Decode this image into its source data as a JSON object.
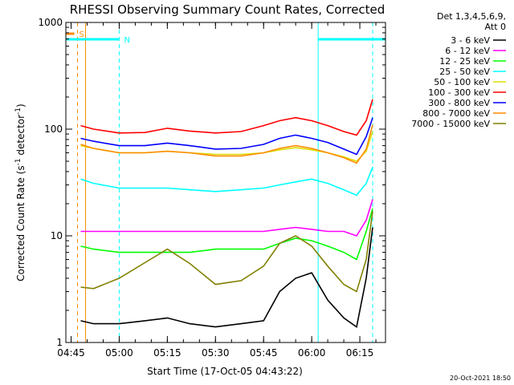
{
  "chart_data": {
    "type": "line",
    "title": "RHESSI Observing Summary Count Rates, Corrected",
    "xlabel": "Start Time (17-Oct-05 04:43:22)",
    "ylabel": "Corrected Count Rate (s⁻¹ detector⁻¹)",
    "yscale": "log",
    "ylim": [
      1,
      1000
    ],
    "xlim": [
      "04:43:22",
      "06:23:00"
    ],
    "y_ticks": [
      "1",
      "10",
      "100",
      "1000"
    ],
    "x_ticks": [
      "04:45",
      "05:00",
      "05:15",
      "05:30",
      "05:45",
      "06:00",
      "06:15"
    ],
    "legend_header": [
      "Det 1,3,4,5,6,9,",
      "Att 0"
    ],
    "legend_position": "right",
    "grid": false,
    "x": [
      "04:48",
      "04:52",
      "05:00",
      "05:08",
      "05:15",
      "05:22",
      "05:30",
      "05:38",
      "05:45",
      "05:50",
      "05:55",
      "06:00",
      "06:05",
      "06:10",
      "06:14",
      "06:17",
      "06:19"
    ],
    "series": [
      {
        "name": "3 - 6 keV",
        "color": "#000000",
        "values": [
          1.6,
          1.5,
          1.5,
          1.6,
          1.7,
          1.5,
          1.4,
          1.5,
          1.6,
          3,
          4,
          4.5,
          2.5,
          1.7,
          1.4,
          4,
          12
        ]
      },
      {
        "name": "6 - 12 keV",
        "color": "#ff00ff",
        "values": [
          11,
          11,
          11,
          11,
          11,
          11,
          11,
          11,
          11,
          11.5,
          12,
          11.5,
          11,
          11,
          10,
          14,
          22
        ]
      },
      {
        "name": "12 - 25 keV",
        "color": "#00ff00",
        "values": [
          8,
          7.5,
          7,
          7,
          7,
          7,
          7.5,
          7.5,
          7.5,
          8.5,
          9.5,
          9,
          8,
          7,
          6,
          11,
          18
        ]
      },
      {
        "name": "25 - 50 keV",
        "color": "#00ffff",
        "values": [
          34,
          31,
          28,
          28,
          28,
          27,
          26,
          27,
          28,
          30,
          32,
          34,
          31,
          27,
          24,
          31,
          44
        ]
      },
      {
        "name": "50 - 100 keV",
        "color": "#dddd00",
        "values": [
          70,
          66,
          60,
          60,
          62,
          60,
          58,
          58,
          60,
          64,
          67,
          64,
          60,
          55,
          50,
          62,
          95
        ]
      },
      {
        "name": "100 - 300 keV",
        "color": "#ff0000",
        "values": [
          108,
          100,
          92,
          93,
          102,
          96,
          92,
          95,
          108,
          120,
          128,
          120,
          108,
          95,
          88,
          120,
          190
        ]
      },
      {
        "name": "300 - 800 keV",
        "color": "#0000ff",
        "values": [
          82,
          77,
          70,
          70,
          74,
          70,
          65,
          66,
          72,
          82,
          88,
          82,
          75,
          65,
          58,
          85,
          128
        ]
      },
      {
        "name": "800 - 7000 keV",
        "color": "#ff8c00",
        "values": [
          72,
          66,
          60,
          60,
          62,
          60,
          56,
          56,
          60,
          66,
          70,
          66,
          60,
          54,
          48,
          65,
          110
        ]
      },
      {
        "name": "7000 - 15000 keV",
        "color": "#808000",
        "values": [
          3.3,
          3.2,
          4,
          5.6,
          7.5,
          5.5,
          3.5,
          3.8,
          5.2,
          8.5,
          10,
          8,
          5.2,
          3.5,
          3,
          6,
          17
        ]
      }
    ],
    "markers": [
      {
        "label": "S",
        "color": "#ff8c00",
        "start": "04:43:22",
        "end": "04:46:00"
      },
      {
        "label": "N",
        "color": "#00ffff",
        "start": "04:43:22",
        "end": "05:00:00"
      },
      {
        "label": "",
        "color": "#00ffff",
        "start": "06:02:00",
        "end": "06:23:00"
      }
    ],
    "vertical_lines": [
      {
        "time": "04:43:22",
        "color": "#00ffff",
        "style": "solid"
      },
      {
        "time": "04:47:00",
        "color": "#ff8c00",
        "style": "dashed"
      },
      {
        "time": "04:49:30",
        "color": "#ff8c00",
        "style": "solid"
      },
      {
        "time": "05:00:00",
        "color": "#00ffff",
        "style": "dashed"
      },
      {
        "time": "06:02:00",
        "color": "#00ffff",
        "style": "solid"
      },
      {
        "time": "06:19:00",
        "color": "#00ffff",
        "style": "dashed"
      }
    ]
  },
  "footer": {
    "timestamp": "20-Oct-2021 18:50"
  }
}
